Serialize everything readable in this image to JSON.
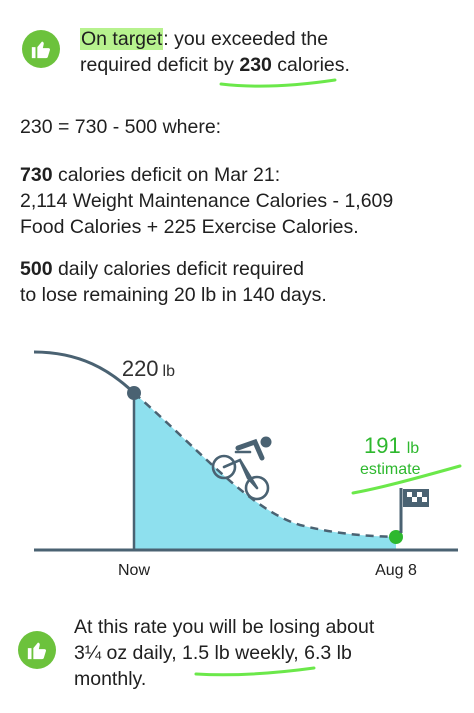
{
  "status": {
    "label": "On target",
    "msg_a": ": you exceeded the",
    "msg_b": "required deficit by ",
    "deficit_value": "230",
    "msg_c": " calories."
  },
  "equation": "230 = 730 - 500 where:",
  "deficit_day": {
    "value": "730",
    "line1": " calories deficit on Mar 21:",
    "line2": "2,114 Weight Maintenance Calories - 1,609",
    "line3": "Food Calories + 225 Exercise Calories."
  },
  "required": {
    "value": "500",
    "line1": " daily calories deficit required",
    "line2": "to lose remaining 20 lb in 140 days."
  },
  "chart_data": {
    "type": "area",
    "x_labels": [
      "Now",
      "Aug 8"
    ],
    "start": {
      "value": "220",
      "unit": "lb"
    },
    "end": {
      "value": "191",
      "unit": "lb",
      "note": "estimate"
    },
    "colors": {
      "fill": "#8ee0ee",
      "line": "#4a6272",
      "start_point": "#4a6272",
      "end_point": "#2eb82e",
      "estimate": "#2eb82e"
    }
  },
  "rate": {
    "line1": "At this rate you will be losing about",
    "line2": "3¼ oz daily, 1.5 lb weekly, 6.3 lb",
    "line3": "monthly."
  },
  "icons": {
    "top_thumb": "thumbs-up-icon",
    "bottom_thumb": "thumbs-up-icon",
    "rider": "cyclist-icon",
    "flag": "finish-flag-icon"
  }
}
